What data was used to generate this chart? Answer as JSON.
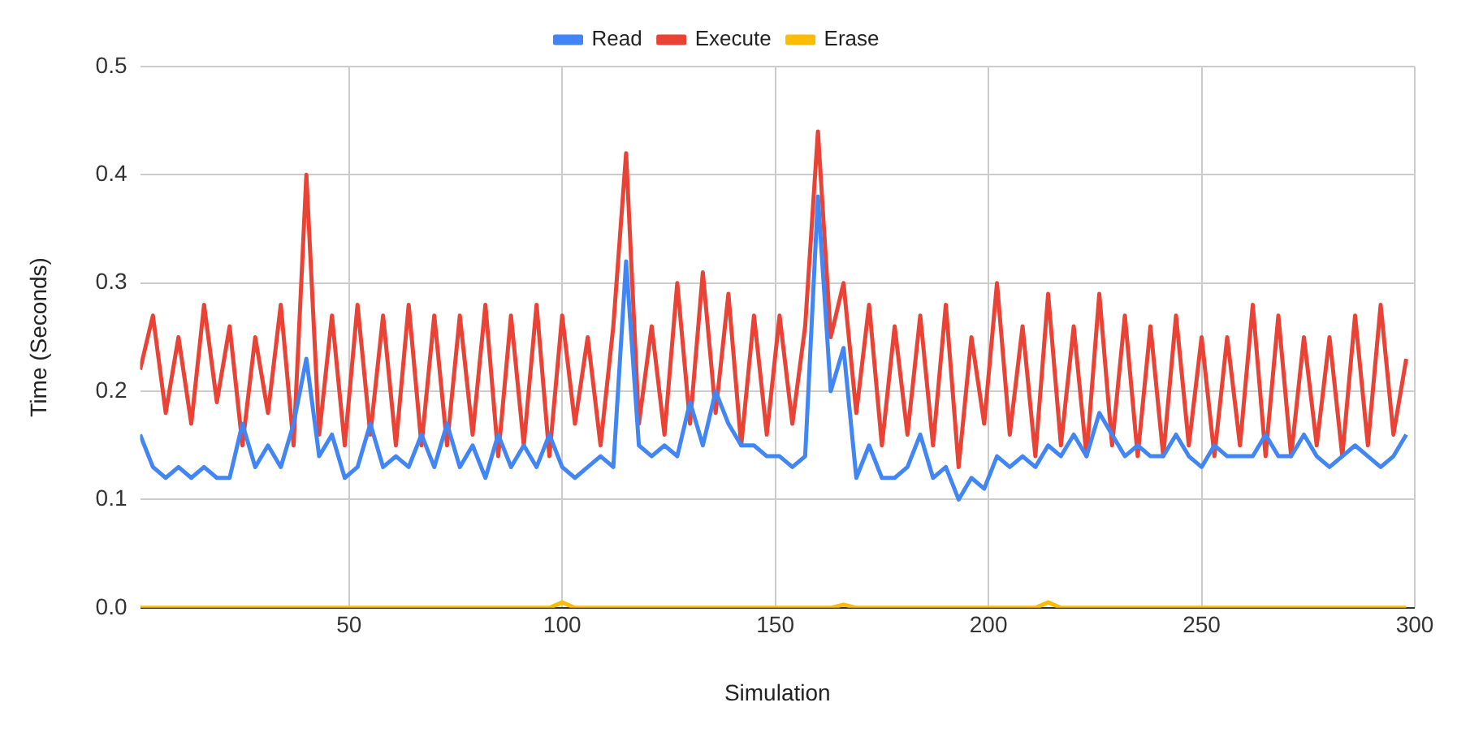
{
  "chart_data": {
    "type": "line",
    "xlabel": "Simulation",
    "ylabel": "Time (Seconds)",
    "legend": "top",
    "grid": true,
    "marker": "none",
    "line_style": "solid",
    "xlim": [
      1,
      300
    ],
    "xticks": [
      50,
      100,
      150,
      200,
      250,
      300
    ],
    "ylim": [
      0,
      0.5
    ],
    "yticks": [
      {
        "value": 0,
        "label": "0.0"
      },
      0.1,
      0.2,
      0.3,
      0.4,
      0.5
    ],
    "x": [
      1,
      4,
      7,
      10,
      13,
      16,
      19,
      22,
      25,
      28,
      31,
      34,
      37,
      40,
      43,
      46,
      49,
      52,
      55,
      58,
      61,
      64,
      67,
      70,
      73,
      76,
      79,
      82,
      85,
      88,
      91,
      94,
      97,
      100,
      103,
      106,
      109,
      112,
      115,
      118,
      121,
      124,
      127,
      130,
      133,
      136,
      139,
      142,
      145,
      148,
      151,
      154,
      157,
      160,
      163,
      166,
      169,
      172,
      175,
      178,
      181,
      184,
      187,
      190,
      193,
      196,
      199,
      202,
      205,
      208,
      211,
      214,
      217,
      220,
      223,
      226,
      229,
      232,
      235,
      238,
      241,
      244,
      247,
      250,
      253,
      256,
      259,
      262,
      265,
      268,
      271,
      274,
      277,
      280,
      283,
      286,
      289,
      292,
      295,
      298
    ],
    "series": [
      {
        "name": "Read",
        "color": "#4285f4",
        "values": [
          0.16,
          0.13,
          0.12,
          0.13,
          0.12,
          0.13,
          0.12,
          0.12,
          0.17,
          0.13,
          0.15,
          0.13,
          0.17,
          0.23,
          0.14,
          0.16,
          0.12,
          0.13,
          0.17,
          0.13,
          0.14,
          0.13,
          0.16,
          0.13,
          0.17,
          0.13,
          0.15,
          0.12,
          0.16,
          0.13,
          0.15,
          0.13,
          0.16,
          0.13,
          0.12,
          0.13,
          0.14,
          0.13,
          0.32,
          0.15,
          0.14,
          0.15,
          0.14,
          0.19,
          0.15,
          0.2,
          0.17,
          0.15,
          0.15,
          0.14,
          0.14,
          0.13,
          0.14,
          0.38,
          0.2,
          0.24,
          0.12,
          0.15,
          0.12,
          0.12,
          0.13,
          0.16,
          0.12,
          0.13,
          0.1,
          0.12,
          0.11,
          0.14,
          0.13,
          0.14,
          0.13,
          0.15,
          0.14,
          0.16,
          0.14,
          0.18,
          0.16,
          0.14,
          0.15,
          0.14,
          0.14,
          0.16,
          0.14,
          0.13,
          0.15,
          0.14,
          0.14,
          0.14,
          0.16,
          0.14,
          0.14,
          0.16,
          0.14,
          0.13,
          0.14,
          0.15,
          0.14,
          0.13,
          0.14,
          0.16
        ]
      },
      {
        "name": "Execute",
        "color": "#ea4335",
        "values": [
          0.22,
          0.27,
          0.18,
          0.25,
          0.17,
          0.28,
          0.19,
          0.26,
          0.15,
          0.25,
          0.18,
          0.28,
          0.15,
          0.4,
          0.16,
          0.27,
          0.15,
          0.28,
          0.16,
          0.27,
          0.15,
          0.28,
          0.15,
          0.27,
          0.15,
          0.27,
          0.16,
          0.28,
          0.14,
          0.27,
          0.15,
          0.28,
          0.14,
          0.27,
          0.17,
          0.25,
          0.15,
          0.26,
          0.42,
          0.17,
          0.26,
          0.16,
          0.3,
          0.17,
          0.31,
          0.18,
          0.29,
          0.15,
          0.27,
          0.16,
          0.27,
          0.17,
          0.26,
          0.44,
          0.25,
          0.3,
          0.18,
          0.28,
          0.15,
          0.26,
          0.16,
          0.27,
          0.15,
          0.28,
          0.13,
          0.25,
          0.17,
          0.3,
          0.16,
          0.26,
          0.14,
          0.29,
          0.15,
          0.26,
          0.14,
          0.29,
          0.15,
          0.27,
          0.14,
          0.26,
          0.14,
          0.27,
          0.15,
          0.25,
          0.14,
          0.25,
          0.15,
          0.28,
          0.14,
          0.27,
          0.14,
          0.25,
          0.15,
          0.25,
          0.14,
          0.27,
          0.15,
          0.28,
          0.16,
          0.23
        ]
      },
      {
        "name": "Erase",
        "color": "#fbbc04",
        "values": [
          0,
          0,
          0,
          0,
          0,
          0,
          0,
          0,
          0,
          0,
          0,
          0,
          0,
          0,
          0,
          0,
          0,
          0,
          0,
          0,
          0,
          0,
          0,
          0,
          0,
          0,
          0,
          0,
          0,
          0,
          0,
          0,
          0,
          0.005,
          0,
          0,
          0,
          0,
          0,
          0,
          0,
          0,
          0,
          0,
          0,
          0,
          0,
          0,
          0,
          0,
          0,
          0,
          0,
          0,
          0,
          0.003,
          0,
          0,
          0,
          0,
          0,
          0,
          0,
          0,
          0,
          0,
          0,
          0,
          0,
          0,
          0,
          0.005,
          0,
          0,
          0,
          0,
          0,
          0,
          0,
          0,
          0,
          0,
          0,
          0,
          0,
          0,
          0,
          0,
          0,
          0,
          0,
          0,
          0,
          0,
          0,
          0,
          0,
          0,
          0,
          0
        ]
      }
    ]
  }
}
